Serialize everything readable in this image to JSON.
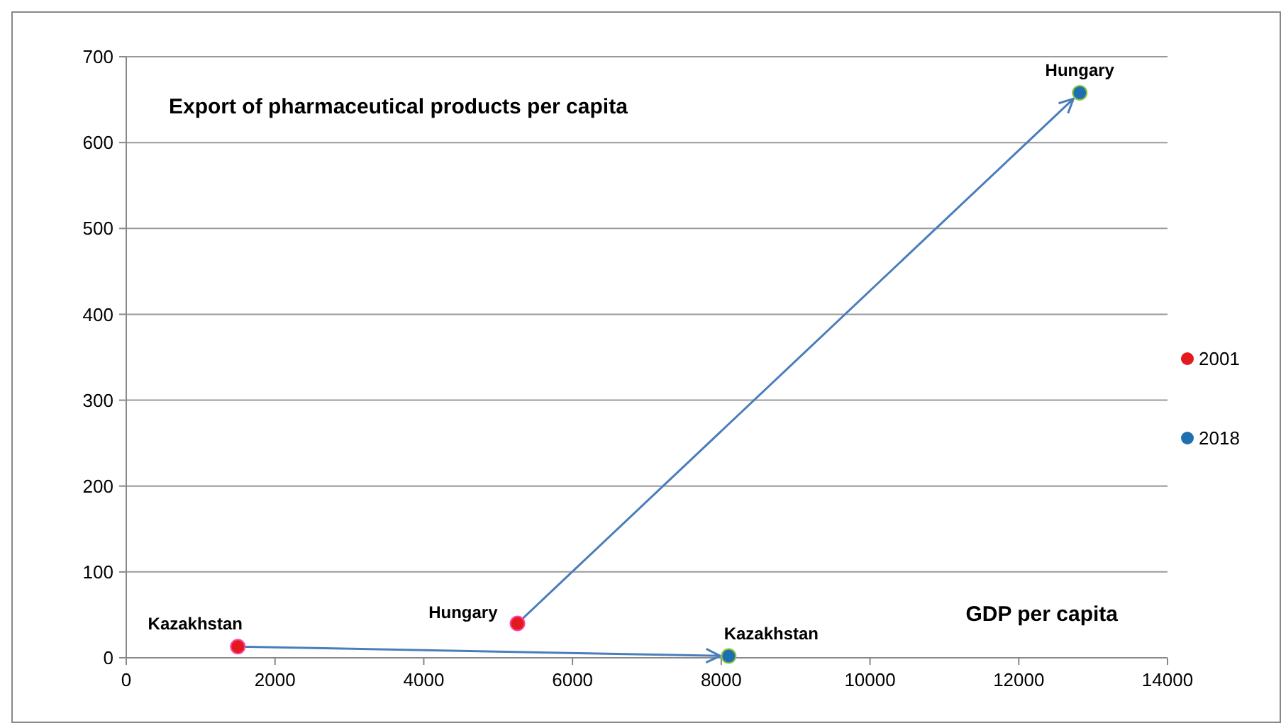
{
  "chart_data": {
    "type": "scatter",
    "title": "Export of pharmaceutical products per capita",
    "xlabel": "GDP per capita",
    "series": [
      {
        "name": "2001",
        "color": "#e31a1c",
        "x": [
          1500,
          5260
        ],
        "values": [
          13,
          40
        ]
      },
      {
        "name": "2018",
        "color": "#1f6fb0",
        "x": [
          8100,
          12820
        ],
        "values": [
          2,
          658
        ]
      }
    ],
    "annotations": [
      {
        "text": "Kazakhstan",
        "x": 1500,
        "y": 13
      },
      {
        "text": "Hungary",
        "x": 5260,
        "y": 40
      },
      {
        "text": "Kazakhstan",
        "x": 8100,
        "y": 2
      },
      {
        "text": "Hungary",
        "x": 12820,
        "y": 658
      }
    ],
    "xlim": [
      0,
      14000
    ],
    "xticks": [
      0,
      2000,
      4000,
      6000,
      8000,
      10000,
      12000,
      14000
    ],
    "ylim": [
      0,
      700
    ],
    "yticks": [
      0,
      100,
      200,
      300,
      400,
      500,
      600,
      700
    ],
    "grid": "y",
    "legend": "right",
    "marker": "circle"
  }
}
